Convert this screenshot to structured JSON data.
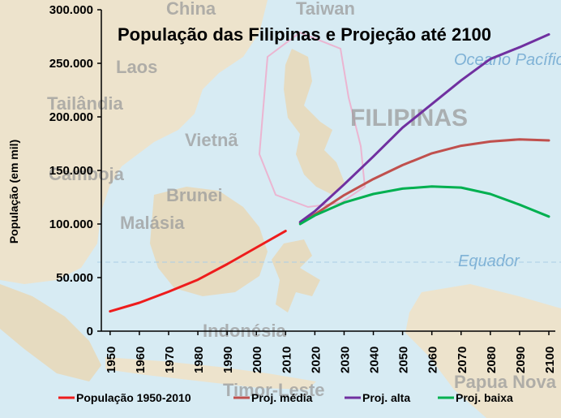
{
  "background_map": {
    "labels": [
      "China",
      "Taiwan",
      "Laos",
      "Tailândia",
      "Vietnã",
      "Camboja",
      "Brunei",
      "Malásia",
      "FILIPINAS",
      "Indonésia",
      "Timor-Leste",
      "Papua Nova",
      "Oceano Pacífico",
      "Equador"
    ]
  },
  "chart_data": {
    "type": "line",
    "title": "População das Filipinas e Projeção até 2100",
    "ylabel": "População (em mil)",
    "xlabel": "",
    "xlim": [
      1947,
      2100
    ],
    "ylim": [
      0,
      300000
    ],
    "x_ticks": [
      "1950",
      "1960",
      "1970",
      "1980",
      "1990",
      "2000",
      "2010",
      "2020",
      "2030",
      "2040",
      "2050",
      "2060",
      "2070",
      "2080",
      "2090",
      "2100"
    ],
    "y_ticks": [
      "0",
      "50.000",
      "100.000",
      "150.000",
      "200.000",
      "250.000",
      "300.000"
    ],
    "grid": false,
    "legend_position": "bottom",
    "series": [
      {
        "name": "População 1950-2010",
        "color": "#ee1c1c",
        "x": [
          1950,
          1960,
          1970,
          1980,
          1990,
          2000,
          2010
        ],
        "y": [
          18500,
          26500,
          36800,
          48000,
          62500,
          78000,
          93500
        ]
      },
      {
        "name": "Proj. média",
        "color": "#c0504d",
        "x": [
          2015,
          2020,
          2030,
          2040,
          2050,
          2060,
          2070,
          2080,
          2090,
          2100
        ],
        "y": [
          101000,
          109000,
          127000,
          142000,
          155000,
          166000,
          173000,
          177000,
          179000,
          178000
        ]
      },
      {
        "name": "Proj. alta",
        "color": "#7030a0",
        "x": [
          2015,
          2020,
          2030,
          2040,
          2050,
          2060,
          2070,
          2080,
          2090,
          2100
        ],
        "y": [
          102000,
          112000,
          137000,
          163000,
          190000,
          212000,
          234000,
          254000,
          265000,
          277000
        ]
      },
      {
        "name": "Proj. baixa",
        "color": "#00b050",
        "x": [
          2015,
          2020,
          2030,
          2040,
          2050,
          2060,
          2070,
          2080,
          2090,
          2100
        ],
        "y": [
          100000,
          108000,
          120000,
          128000,
          133000,
          135000,
          134000,
          128000,
          118000,
          107000
        ]
      }
    ]
  }
}
